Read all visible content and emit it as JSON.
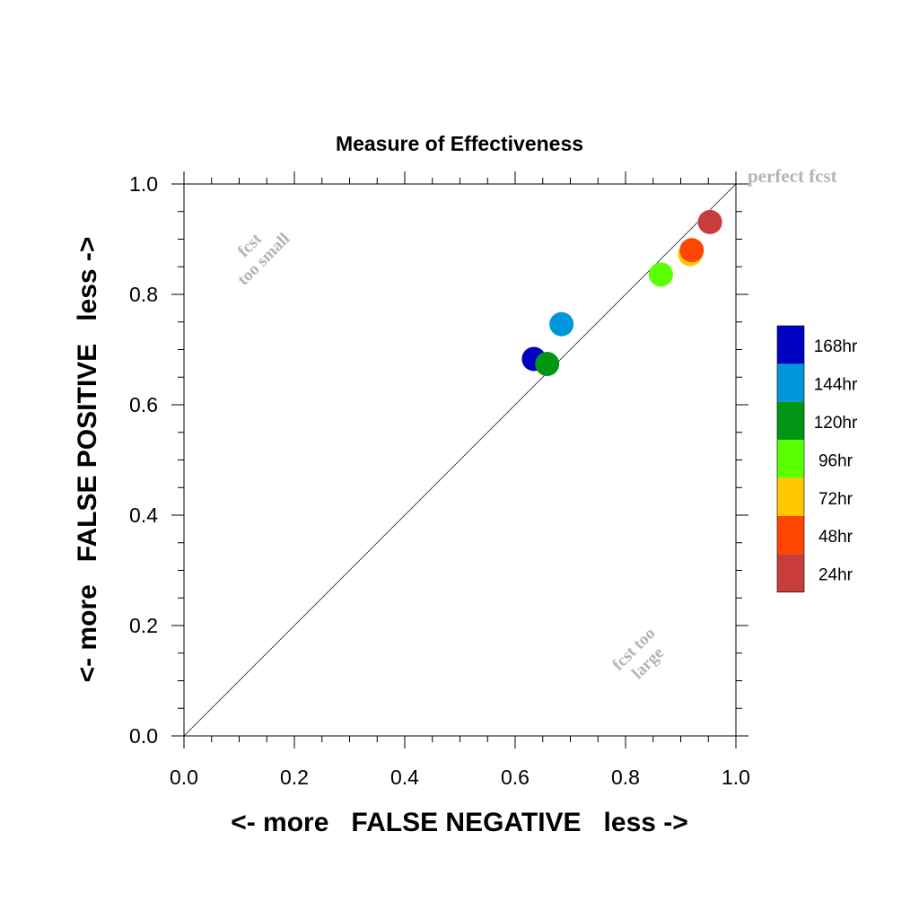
{
  "chart_data": {
    "type": "scatter",
    "title": "Measure of Effectiveness",
    "xlabel": "<- more   FALSE NEGATIVE   less ->",
    "ylabel": "<- more   FALSE POSITIVE   less ->",
    "xlim": [
      0.0,
      1.0
    ],
    "ylim": [
      0.0,
      1.0
    ],
    "xticks": [
      "0.0",
      "0.2",
      "0.4",
      "0.6",
      "0.8",
      "1.0"
    ],
    "yticks": [
      "0.0",
      "0.2",
      "0.4",
      "0.6",
      "0.8",
      "1.0"
    ],
    "grid": false,
    "diagonal_line": true,
    "annotations": {
      "perfect": "perfect fcst",
      "small_line1": "fcst",
      "small_line2": "too small",
      "large_line1": "fcst too",
      "large_line2": "large"
    },
    "legend_position": "right",
    "series": [
      {
        "name": "168hr",
        "color": "#0000c0",
        "x": 0.634,
        "y": 0.683
      },
      {
        "name": "144hr",
        "color": "#0096dc",
        "x": 0.684,
        "y": 0.746
      },
      {
        "name": "120hr",
        "color": "#009614",
        "x": 0.658,
        "y": 0.674
      },
      {
        "name": "96hr",
        "color": "#5aff00",
        "x": 0.864,
        "y": 0.836
      },
      {
        "name": "72hr",
        "color": "#ffc800",
        "x": 0.917,
        "y": 0.873
      },
      {
        "name": "48hr",
        "color": "#ff4600",
        "x": 0.92,
        "y": 0.88
      },
      {
        "name": "24hr",
        "color": "#c83c3c",
        "x": 0.953,
        "y": 0.931
      }
    ]
  }
}
